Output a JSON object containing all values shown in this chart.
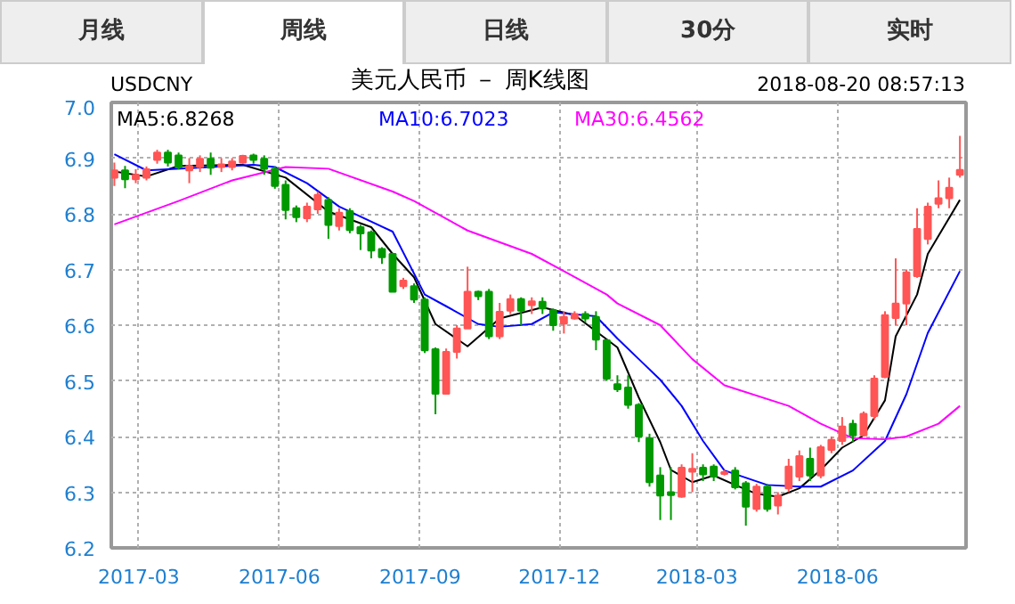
{
  "chart_data": {
    "type": "candlestick",
    "title": "美元人民币 － 周K线图",
    "subtitle": "USDCNY",
    "annotations": [
      "2018-08-20 08:57:13",
      "月线",
      "周线",
      "日线",
      "30分",
      "实时"
    ],
    "x": [
      "2017-02-13",
      "2017-02-20",
      "2017-02-27",
      "2017-03-06",
      "2017-03-13",
      "2017-03-20",
      "2017-03-27",
      "2017-04-03",
      "2017-04-10",
      "2017-04-17",
      "2017-04-24",
      "2017-05-01",
      "2017-05-08",
      "2017-05-15",
      "2017-05-22",
      "2017-05-29",
      "2017-06-05",
      "2017-06-12",
      "2017-06-19",
      "2017-06-26",
      "2017-07-03",
      "2017-07-10",
      "2017-07-17",
      "2017-07-24",
      "2017-07-31",
      "2017-08-07",
      "2017-08-14",
      "2017-08-21",
      "2017-08-28",
      "2017-09-04",
      "2017-09-11",
      "2017-09-18",
      "2017-09-25",
      "2017-10-02",
      "2017-10-09",
      "2017-10-16",
      "2017-10-23",
      "2017-10-30",
      "2017-11-06",
      "2017-11-13",
      "2017-11-20",
      "2017-11-27",
      "2017-12-04",
      "2017-12-11",
      "2017-12-18",
      "2017-12-25",
      "2018-01-01",
      "2018-01-08",
      "2018-01-15",
      "2018-01-22",
      "2018-01-29",
      "2018-02-05",
      "2018-02-12",
      "2018-02-19",
      "2018-02-26",
      "2018-03-05",
      "2018-03-12",
      "2018-03-19",
      "2018-03-26",
      "2018-04-02",
      "2018-04-09",
      "2018-04-16",
      "2018-04-23",
      "2018-04-30",
      "2018-05-07",
      "2018-05-14",
      "2018-05-21",
      "2018-05-28",
      "2018-06-04",
      "2018-06-11",
      "2018-06-18",
      "2018-06-25",
      "2018-07-02",
      "2018-07-09",
      "2018-07-16",
      "2018-07-23",
      "2018-07-30",
      "2018-08-06",
      "2018-08-13",
      "2018-08-20"
    ],
    "ohlc": [
      [
        6.865,
        6.892,
        6.85,
        6.878
      ],
      [
        6.878,
        6.886,
        6.846,
        6.862
      ],
      [
        6.862,
        6.88,
        6.855,
        6.87
      ],
      [
        6.865,
        6.885,
        6.86,
        6.88
      ],
      [
        6.897,
        6.915,
        6.89,
        6.91
      ],
      [
        6.91,
        6.915,
        6.885,
        6.892
      ],
      [
        6.905,
        6.91,
        6.88,
        6.884
      ],
      [
        6.878,
        6.9,
        6.855,
        6.886
      ],
      [
        6.884,
        6.905,
        6.875,
        6.899
      ],
      [
        6.899,
        6.91,
        6.87,
        6.883
      ],
      [
        6.884,
        6.9,
        6.875,
        6.889
      ],
      [
        6.884,
        6.9,
        6.878,
        6.894
      ],
      [
        6.892,
        6.906,
        6.89,
        6.904
      ],
      [
        6.905,
        6.908,
        6.89,
        6.897
      ],
      [
        6.899,
        6.905,
        6.87,
        6.881
      ],
      [
        6.881,
        6.885,
        6.845,
        6.85
      ],
      [
        6.852,
        6.86,
        6.79,
        6.807
      ],
      [
        6.81,
        6.815,
        6.785,
        6.794
      ],
      [
        6.792,
        6.82,
        6.785,
        6.813
      ],
      [
        6.808,
        6.84,
        6.8,
        6.834
      ],
      [
        6.825,
        6.83,
        6.755,
        6.78
      ],
      [
        6.778,
        6.81,
        6.77,
        6.802
      ],
      [
        6.805,
        6.81,
        6.765,
        6.771
      ],
      [
        6.776,
        6.78,
        6.735,
        6.765
      ],
      [
        6.767,
        6.77,
        6.72,
        6.734
      ],
      [
        6.737,
        6.74,
        6.71,
        6.722
      ],
      [
        6.728,
        6.73,
        6.66,
        6.66
      ],
      [
        6.67,
        6.685,
        6.665,
        6.68
      ],
      [
        6.67,
        6.675,
        6.64,
        6.646
      ],
      [
        6.646,
        6.65,
        6.55,
        6.555
      ],
      [
        6.557,
        6.56,
        6.44,
        6.477
      ],
      [
        6.477,
        6.558,
        6.477,
        6.552
      ],
      [
        6.552,
        6.6,
        6.54,
        6.594
      ],
      [
        6.594,
        6.705,
        6.594,
        6.66
      ],
      [
        6.66,
        6.662,
        6.645,
        6.652
      ],
      [
        6.66,
        6.665,
        6.575,
        6.58
      ],
      [
        6.58,
        6.64,
        6.575,
        6.624
      ],
      [
        6.626,
        6.655,
        6.62,
        6.647
      ],
      [
        6.647,
        6.65,
        6.6,
        6.626
      ],
      [
        6.636,
        6.65,
        6.62,
        6.643
      ],
      [
        6.642,
        6.65,
        6.62,
        6.63
      ],
      [
        6.627,
        6.63,
        6.59,
        6.6
      ],
      [
        6.603,
        6.625,
        6.585,
        6.615
      ],
      [
        6.612,
        6.625,
        6.61,
        6.62
      ],
      [
        6.62,
        6.625,
        6.605,
        6.612
      ],
      [
        6.615,
        6.625,
        6.555,
        6.574
      ],
      [
        6.573,
        6.575,
        6.5,
        6.504
      ],
      [
        6.494,
        6.51,
        6.48,
        6.485
      ],
      [
        6.488,
        6.51,
        6.45,
        6.457
      ],
      [
        6.457,
        6.46,
        6.39,
        6.4
      ],
      [
        6.397,
        6.405,
        6.31,
        6.318
      ],
      [
        6.33,
        6.345,
        6.25,
        6.294
      ],
      [
        6.3,
        6.345,
        6.25,
        6.295
      ],
      [
        6.292,
        6.35,
        6.29,
        6.344
      ],
      [
        6.337,
        6.37,
        6.3,
        6.342
      ],
      [
        6.344,
        6.35,
        6.32,
        6.332
      ],
      [
        6.346,
        6.35,
        6.32,
        6.328
      ],
      [
        6.333,
        6.34,
        6.33,
        6.336
      ],
      [
        6.339,
        6.345,
        6.305,
        6.309
      ],
      [
        6.316,
        6.32,
        6.24,
        6.274
      ],
      [
        6.27,
        6.315,
        6.265,
        6.31
      ],
      [
        6.31,
        6.315,
        6.265,
        6.27
      ],
      [
        6.276,
        6.3,
        6.26,
        6.294
      ],
      [
        6.307,
        6.36,
        6.3,
        6.346
      ],
      [
        6.328,
        6.375,
        6.32,
        6.365
      ],
      [
        6.36,
        6.38,
        6.32,
        6.33
      ],
      [
        6.33,
        6.385,
        6.325,
        6.381
      ],
      [
        6.376,
        6.4,
        6.37,
        6.394
      ],
      [
        6.392,
        6.435,
        6.385,
        6.418
      ],
      [
        6.423,
        6.43,
        6.39,
        6.402
      ],
      [
        6.402,
        6.445,
        6.4,
        6.441
      ],
      [
        6.437,
        6.51,
        6.43,
        6.504
      ],
      [
        6.507,
        6.625,
        6.505,
        6.618
      ],
      [
        6.613,
        6.72,
        6.6,
        6.639
      ],
      [
        6.639,
        6.7,
        6.6,
        6.695
      ],
      [
        6.688,
        6.81,
        6.685,
        6.773
      ],
      [
        6.755,
        6.82,
        6.745,
        6.813
      ],
      [
        6.818,
        6.86,
        6.81,
        6.828
      ],
      [
        6.828,
        6.865,
        6.81,
        6.847
      ],
      [
        6.87,
        6.94,
        6.865,
        6.879
      ]
    ],
    "series": [
      {
        "name": "MA5:6.8268",
        "type": "line",
        "color": "#000000",
        "x": [
          "2017-02-13",
          "2017-03-06",
          "2017-03-27",
          "2017-05-08",
          "2017-06-05",
          "2017-07-03",
          "2017-07-31",
          "2017-08-14",
          "2017-08-28",
          "2017-09-11",
          "2017-10-02",
          "2017-10-23",
          "2017-11-20",
          "2017-12-11",
          "2018-01-08",
          "2018-01-22",
          "2018-02-05",
          "2018-02-12",
          "2018-02-26",
          "2018-03-12",
          "2018-03-26",
          "2018-04-09",
          "2018-04-23",
          "2018-05-07",
          "2018-05-21",
          "2018-06-04",
          "2018-06-18",
          "2018-07-02",
          "2018-07-09",
          "2018-07-23",
          "2018-07-30",
          "2018-08-20"
        ],
        "values": [
          6.876,
          6.867,
          6.886,
          6.888,
          6.865,
          6.804,
          6.776,
          6.728,
          6.686,
          6.602,
          6.562,
          6.612,
          6.632,
          6.618,
          6.56,
          6.47,
          6.39,
          6.34,
          6.318,
          6.33,
          6.313,
          6.297,
          6.292,
          6.307,
          6.34,
          6.38,
          6.402,
          6.465,
          6.58,
          6.655,
          6.728,
          6.825
        ]
      },
      {
        "name": "MA10:6.7023",
        "type": "line",
        "color": "#0000ff",
        "x": [
          "2017-02-13",
          "2017-03-06",
          "2017-04-17",
          "2017-05-15",
          "2017-05-29",
          "2017-06-19",
          "2017-07-10",
          "2017-08-14",
          "2017-09-04",
          "2017-09-18",
          "2017-10-09",
          "2017-10-23",
          "2017-11-13",
          "2017-11-27",
          "2017-12-25",
          "2018-01-08",
          "2018-01-22",
          "2018-02-05",
          "2018-02-19",
          "2018-03-05",
          "2018-03-19",
          "2018-04-16",
          "2018-05-07",
          "2018-05-21",
          "2018-06-11",
          "2018-07-02",
          "2018-07-16",
          "2018-07-30",
          "2018-08-20"
        ],
        "values": [
          6.907,
          6.878,
          6.884,
          6.888,
          6.884,
          6.855,
          6.813,
          6.768,
          6.655,
          6.634,
          6.602,
          6.597,
          6.602,
          6.623,
          6.616,
          6.576,
          6.539,
          6.502,
          6.455,
          6.392,
          6.339,
          6.313,
          6.31,
          6.31,
          6.339,
          6.392,
          6.476,
          6.586,
          6.697
        ]
      },
      {
        "name": "MA30:6.4562",
        "type": "line",
        "color": "#ff00ff",
        "x": [
          "2017-02-13",
          "2017-03-27",
          "2017-05-01",
          "2017-06-05",
          "2017-07-03",
          "2017-08-14",
          "2017-08-28",
          "2017-10-02",
          "2017-11-13",
          "2017-12-04",
          "2018-01-01",
          "2018-01-08",
          "2018-02-05",
          "2018-02-26",
          "2018-03-19",
          "2018-04-30",
          "2018-05-21",
          "2018-06-11",
          "2018-07-02",
          "2018-07-16",
          "2018-08-06",
          "2018-08-20"
        ],
        "values": [
          6.781,
          6.823,
          6.86,
          6.884,
          6.881,
          6.84,
          6.823,
          6.77,
          6.728,
          6.697,
          6.655,
          6.639,
          6.6,
          6.539,
          6.492,
          6.455,
          6.423,
          6.397,
          6.395,
          6.4,
          6.423,
          6.455
        ]
      }
    ],
    "xlim": [
      "2017-02-11",
      "2018-08-24"
    ],
    "xticks": [
      {
        "value": "2017-03-01",
        "label": "2017-03"
      },
      {
        "value": "2017-06-01",
        "label": "2017-06"
      },
      {
        "value": "2017-09-01",
        "label": "2017-09"
      },
      {
        "value": "2017-12-01",
        "label": "2017-12"
      },
      {
        "value": "2018-03-01",
        "label": "2018-03"
      },
      {
        "value": "2018-06-01",
        "label": "2018-06"
      }
    ],
    "ylim": [
      6.2,
      7.0
    ],
    "yticks": [
      6.2,
      6.3,
      6.4,
      6.5,
      6.6,
      6.7,
      6.8,
      6.9,
      {
        "value": 7,
        "label": "7.0"
      }
    ],
    "grid": true,
    "line_style": "solid",
    "marker": "none"
  }
}
